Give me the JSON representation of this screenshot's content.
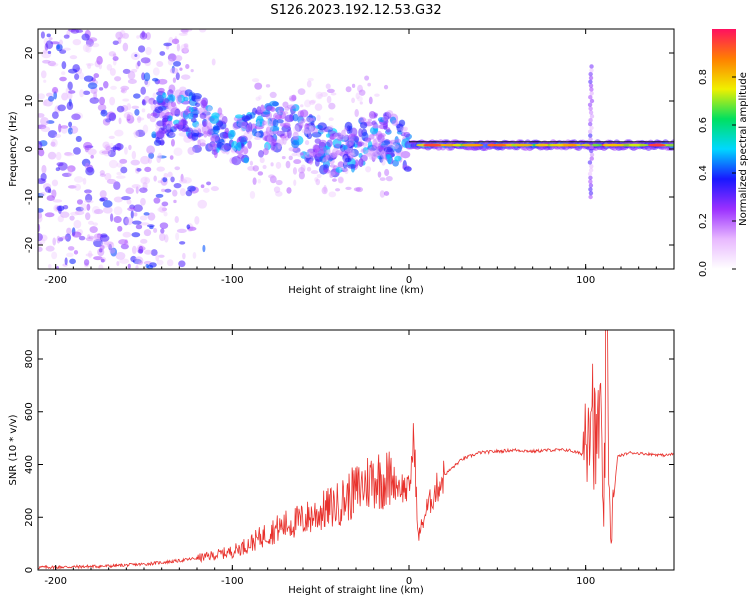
{
  "figure": {
    "title": "S126.2023.192.12.53.G32"
  },
  "chart_data": [
    {
      "type": "heatmap",
      "title": "",
      "xlabel": "Height of straight line (km)",
      "ylabel": "Frequency (Hz)",
      "xlim": [
        -210,
        150
      ],
      "ylim": [
        -25,
        25
      ],
      "xticks": [
        -200,
        -100,
        0,
        100
      ],
      "yticks": [
        -20,
        -10,
        0,
        10,
        20
      ],
      "colorbar": {
        "label": "Normalized spectral amplitude",
        "range": [
          0,
          1
        ],
        "ticks": [
          0.0,
          0.2,
          0.4,
          0.6,
          0.8
        ],
        "tick_labels": [
          "0.0",
          "0.2",
          "0.4",
          "0.6",
          "0.8"
        ],
        "colormap": [
          "#ffffff",
          "#e8b8ff",
          "#9b30ff",
          "#1818ff",
          "#00d8ff",
          "#00e060",
          "#f0f000",
          "#ff8000",
          "#ff1060"
        ]
      },
      "features": [
        {
          "description": "scattered noise blobs",
          "x_range": [
            -210,
            -145
          ],
          "freq_range": [
            -25,
            25
          ]
        },
        {
          "description": "signal band",
          "x_range": [
            -145,
            0
          ],
          "freq_center": [
            6,
            0
          ],
          "width_hz": 6
        },
        {
          "description": "strong narrow band",
          "x_range": [
            0,
            150
          ],
          "freq_center": 0.8,
          "width_hz": 2
        },
        {
          "description": "vertical streak",
          "x": 103,
          "freq_range": [
            -10,
            18
          ]
        }
      ]
    },
    {
      "type": "line",
      "title": "",
      "xlabel": "Height of straight line (km)",
      "ylabel": "SNR (10 * v/v)",
      "xlim": [
        -210,
        150
      ],
      "ylim": [
        0,
        910
      ],
      "xticks": [
        -200,
        -100,
        0,
        100
      ],
      "yticks": [
        0,
        200,
        400,
        600,
        800
      ],
      "series": [
        {
          "color": "#e8312c",
          "points": [
            [
              -210,
              10
            ],
            [
              -190,
              12
            ],
            [
              -170,
              15
            ],
            [
              -150,
              22
            ],
            [
              -130,
              35
            ],
            [
              -115,
              50
            ],
            [
              -100,
              70
            ],
            [
              -90,
              100
            ],
            [
              -80,
              140
            ],
            [
              -70,
              170
            ],
            [
              -60,
              190
            ],
            [
              -50,
              220
            ],
            [
              -40,
              250
            ],
            [
              -30,
              300
            ],
            [
              -20,
              350
            ],
            [
              -10,
              340
            ],
            [
              0,
              300
            ],
            [
              3,
              510
            ],
            [
              5,
              120
            ],
            [
              10,
              230
            ],
            [
              15,
              300
            ],
            [
              20,
              360
            ],
            [
              30,
              420
            ],
            [
              40,
              445
            ],
            [
              50,
              450
            ],
            [
              60,
              455
            ],
            [
              70,
              450
            ],
            [
              80,
              455
            ],
            [
              90,
              455
            ],
            [
              98,
              440
            ],
            [
              100,
              560
            ],
            [
              103,
              710
            ],
            [
              106,
              420
            ],
            [
              108,
              660
            ],
            [
              110,
              150
            ],
            [
              112,
              910
            ],
            [
              114,
              120
            ],
            [
              118,
              430
            ],
            [
              125,
              445
            ],
            [
              135,
              440
            ],
            [
              145,
              435
            ],
            [
              150,
              440
            ]
          ]
        }
      ]
    }
  ]
}
